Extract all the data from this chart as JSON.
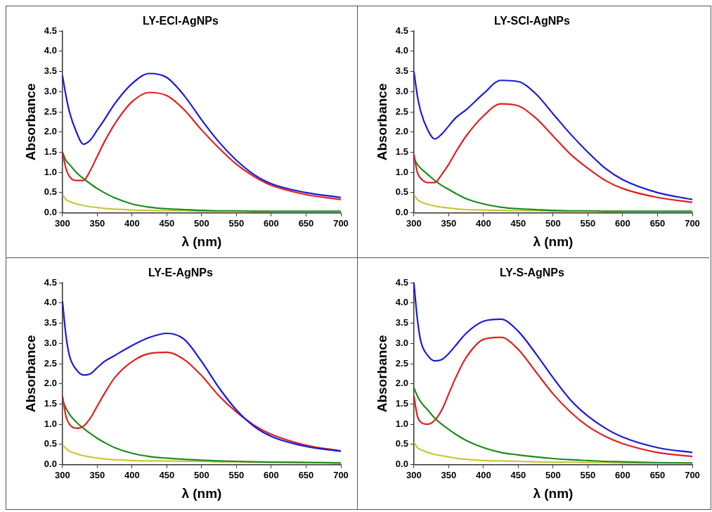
{
  "chart_data": [
    {
      "type": "line",
      "title": "LY-ECl-AgNPs",
      "xlabel": "λ (nm)",
      "ylabel": "Absorbance",
      "xlim": [
        300,
        700
      ],
      "ylim": [
        0,
        4.5
      ],
      "xticks": [
        300,
        350,
        400,
        450,
        500,
        550,
        600,
        650,
        700
      ],
      "yticks": [
        {
          "value": 0,
          "label": "0.0"
        },
        0.5,
        {
          "value": 1,
          "label": "1.0"
        },
        1.5,
        {
          "value": 2,
          "label": "2.0"
        },
        2.5,
        {
          "value": 3,
          "label": "3.0"
        },
        3.5,
        {
          "value": 4,
          "label": "4.0"
        },
        4.5
      ],
      "grid": false,
      "legend": false,
      "marker": "none",
      "line_style": "solid",
      "x": [
        300,
        305,
        310,
        320,
        330,
        340,
        350,
        360,
        375,
        400,
        425,
        450,
        475,
        500,
        525,
        550,
        575,
        600,
        650,
        700
      ],
      "series": [
        {
          "color": "#1a1adb",
          "values": [
            3.4,
            2.9,
            2.5,
            2.0,
            1.7,
            1.8,
            2.05,
            2.3,
            2.7,
            3.2,
            3.45,
            3.35,
            2.9,
            2.3,
            1.75,
            1.3,
            0.95,
            0.72,
            0.5,
            0.38
          ]
        },
        {
          "color": "#e02020",
          "values": [
            1.5,
            1.1,
            0.9,
            0.8,
            0.8,
            1.05,
            1.4,
            1.75,
            2.2,
            2.75,
            2.98,
            2.9,
            2.55,
            2.05,
            1.6,
            1.2,
            0.9,
            0.68,
            0.45,
            0.33
          ]
        },
        {
          "color": "#1e8c1e",
          "values": [
            1.5,
            1.3,
            1.2,
            1.0,
            0.85,
            0.72,
            0.6,
            0.5,
            0.37,
            0.22,
            0.14,
            0.1,
            0.08,
            0.06,
            0.05,
            0.05,
            0.04,
            0.04,
            0.04,
            0.04
          ]
        },
        {
          "color": "#c8c83c",
          "values": [
            0.45,
            0.33,
            0.28,
            0.22,
            0.18,
            0.15,
            0.13,
            0.11,
            0.09,
            0.07,
            0.06,
            0.05,
            0.05,
            0.04,
            0.04,
            0.04,
            0.04,
            0.04,
            null,
            null
          ]
        }
      ]
    },
    {
      "type": "line",
      "title": "LY-SCl-AgNPs",
      "xlabel": "λ (nm)",
      "ylabel": "Absorbance",
      "xlim": [
        300,
        700
      ],
      "ylim": [
        0,
        4.5
      ],
      "xticks": [
        300,
        350,
        400,
        450,
        500,
        550,
        600,
        650,
        700
      ],
      "yticks": [
        {
          "value": 0,
          "label": "0.0"
        },
        0.5,
        {
          "value": 1,
          "label": "1.0"
        },
        1.5,
        {
          "value": 2,
          "label": "2.0"
        },
        2.5,
        {
          "value": 3,
          "label": "3.0"
        },
        3.5,
        {
          "value": 4,
          "label": "4.0"
        },
        4.5
      ],
      "grid": false,
      "legend": false,
      "marker": "none",
      "line_style": "solid",
      "x": [
        300,
        305,
        310,
        320,
        330,
        340,
        350,
        360,
        375,
        400,
        425,
        450,
        475,
        500,
        525,
        550,
        575,
        600,
        650,
        700
      ],
      "series": [
        {
          "color": "#1a1adb",
          "values": [
            3.5,
            2.9,
            2.5,
            2.05,
            1.83,
            1.95,
            2.15,
            2.35,
            2.55,
            2.95,
            3.28,
            3.25,
            2.95,
            2.45,
            1.95,
            1.5,
            1.1,
            0.82,
            0.5,
            0.33
          ]
        },
        {
          "color": "#e02020",
          "values": [
            1.45,
            1.0,
            0.85,
            0.75,
            0.75,
            0.95,
            1.2,
            1.5,
            1.9,
            2.4,
            2.7,
            2.65,
            2.35,
            1.9,
            1.45,
            1.1,
            0.8,
            0.6,
            0.38,
            0.26
          ]
        },
        {
          "color": "#1e8c1e",
          "values": [
            1.35,
            1.2,
            1.1,
            0.95,
            0.8,
            0.68,
            0.58,
            0.48,
            0.35,
            0.22,
            0.14,
            0.1,
            0.08,
            0.06,
            0.05,
            0.05,
            0.04,
            0.04,
            0.04,
            0.04
          ]
        },
        {
          "color": "#c8c83c",
          "values": [
            0.45,
            0.33,
            0.27,
            0.21,
            0.17,
            0.14,
            0.12,
            0.1,
            0.08,
            0.07,
            0.06,
            0.05,
            0.05,
            0.04,
            0.04,
            0.04,
            0.04,
            0.04,
            null,
            null
          ]
        }
      ]
    },
    {
      "type": "line",
      "title": "LY-E-AgNPs",
      "xlabel": "λ (nm)",
      "ylabel": "Absorbance",
      "xlim": [
        300,
        700
      ],
      "ylim": [
        0,
        4.5
      ],
      "xticks": [
        300,
        350,
        400,
        450,
        500,
        550,
        600,
        650,
        700
      ],
      "yticks": [
        {
          "value": 0,
          "label": "0.0"
        },
        0.5,
        {
          "value": 1,
          "label": "1.0"
        },
        1.5,
        {
          "value": 2,
          "label": "2.0"
        },
        2.5,
        {
          "value": 3,
          "label": "3.0"
        },
        3.5,
        {
          "value": 4,
          "label": "4.0"
        },
        4.5
      ],
      "grid": false,
      "legend": false,
      "marker": "none",
      "line_style": "solid",
      "x": [
        300,
        305,
        310,
        320,
        330,
        340,
        350,
        360,
        375,
        400,
        425,
        450,
        475,
        500,
        525,
        550,
        575,
        600,
        650,
        700
      ],
      "series": [
        {
          "color": "#1a1adb",
          "values": [
            4.05,
            3.2,
            2.7,
            2.35,
            2.22,
            2.25,
            2.4,
            2.55,
            2.7,
            2.95,
            3.15,
            3.25,
            3.1,
            2.55,
            1.9,
            1.35,
            0.95,
            0.7,
            0.45,
            0.33
          ]
        },
        {
          "color": "#e02020",
          "values": [
            1.7,
            1.2,
            1.0,
            0.9,
            0.95,
            1.15,
            1.45,
            1.75,
            2.15,
            2.55,
            2.75,
            2.78,
            2.6,
            2.2,
            1.7,
            1.3,
            0.98,
            0.75,
            0.48,
            0.34
          ]
        },
        {
          "color": "#1e8c1e",
          "values": [
            1.6,
            1.4,
            1.25,
            1.05,
            0.9,
            0.77,
            0.65,
            0.55,
            0.42,
            0.28,
            0.2,
            0.16,
            0.13,
            0.11,
            0.09,
            0.08,
            0.07,
            0.06,
            0.05,
            0.04
          ]
        },
        {
          "color": "#c8c83c",
          "values": [
            0.5,
            0.4,
            0.33,
            0.27,
            0.22,
            0.19,
            0.16,
            0.14,
            0.12,
            0.1,
            0.09,
            0.09,
            0.08,
            0.08,
            0.07,
            0.07,
            0.06,
            0.06,
            0.06,
            0.05
          ]
        }
      ]
    },
    {
      "type": "line",
      "title": "LY-S-AgNPs",
      "xlabel": "λ (nm)",
      "ylabel": "Absorbance",
      "xlim": [
        300,
        700
      ],
      "ylim": [
        0,
        4.5
      ],
      "xticks": [
        300,
        350,
        400,
        450,
        500,
        550,
        600,
        650,
        700
      ],
      "yticks": [
        {
          "value": 0,
          "label": "0.0"
        },
        0.5,
        {
          "value": 1,
          "label": "1.0"
        },
        1.5,
        {
          "value": 2,
          "label": "2.0"
        },
        2.5,
        {
          "value": 3,
          "label": "3.0"
        },
        3.5,
        {
          "value": 4,
          "label": "4.0"
        },
        4.5
      ],
      "grid": false,
      "legend": false,
      "marker": "none",
      "line_style": "solid",
      "x": [
        300,
        305,
        310,
        320,
        330,
        340,
        350,
        360,
        375,
        400,
        425,
        450,
        475,
        500,
        525,
        550,
        575,
        600,
        650,
        700
      ],
      "series": [
        {
          "color": "#1a1adb",
          "values": [
            4.5,
            3.6,
            3.05,
            2.7,
            2.57,
            2.6,
            2.75,
            2.95,
            3.25,
            3.55,
            3.6,
            3.3,
            2.75,
            2.15,
            1.6,
            1.2,
            0.9,
            0.68,
            0.42,
            0.3
          ]
        },
        {
          "color": "#e02020",
          "values": [
            1.7,
            1.2,
            1.05,
            1.0,
            1.1,
            1.35,
            1.75,
            2.15,
            2.65,
            3.1,
            3.15,
            2.85,
            2.3,
            1.75,
            1.3,
            0.95,
            0.7,
            0.52,
            0.3,
            0.2
          ]
        },
        {
          "color": "#1e8c1e",
          "values": [
            1.9,
            1.7,
            1.55,
            1.35,
            1.15,
            1.0,
            0.87,
            0.75,
            0.6,
            0.42,
            0.3,
            0.24,
            0.19,
            0.15,
            0.12,
            0.1,
            0.08,
            0.07,
            0.05,
            0.04
          ]
        },
        {
          "color": "#c8c83c",
          "values": [
            0.55,
            0.42,
            0.37,
            0.3,
            0.25,
            0.22,
            0.19,
            0.16,
            0.13,
            0.1,
            0.09,
            0.08,
            0.07,
            0.06,
            0.06,
            0.05,
            0.05,
            0.04,
            0.04,
            0.04
          ]
        }
      ]
    }
  ]
}
